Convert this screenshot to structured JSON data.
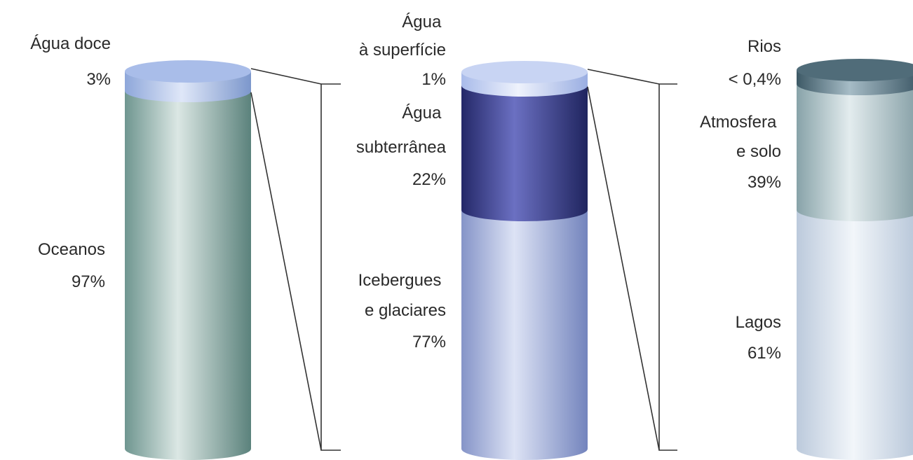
{
  "chart_data": {
    "type": "stacked-column",
    "columns": [
      {
        "segments": [
          {
            "label": "Oceanos",
            "value_text": "97%",
            "value": 97,
            "color": "#7fa8a2"
          },
          {
            "label": "Água doce",
            "value_text": "3%",
            "value": 3,
            "color": "#9fb8e6"
          }
        ]
      },
      {
        "segments": [
          {
            "label": "Icebergues e glaciares",
            "value_text": "77%",
            "value": 77,
            "color": "#9aaad8"
          },
          {
            "label": "Água subterrânea",
            "value_text": "22%",
            "value": 22,
            "color": "#34387e"
          },
          {
            "label": "Água à superfície",
            "value_text": "1%",
            "value": 1,
            "color": "#b7c6ee"
          }
        ]
      },
      {
        "segments": [
          {
            "label": "Lagos",
            "value_text": "61%",
            "value": 61,
            "color": "#c9d6e6"
          },
          {
            "label": "Atmosfera e solo",
            "value_text": "39%",
            "value": 39,
            "color": "#9cb5ba"
          },
          {
            "label": "Rios",
            "value_text": "< 0,4%",
            "value": 0.4,
            "color": "#4f6c79"
          }
        ]
      }
    ]
  }
}
